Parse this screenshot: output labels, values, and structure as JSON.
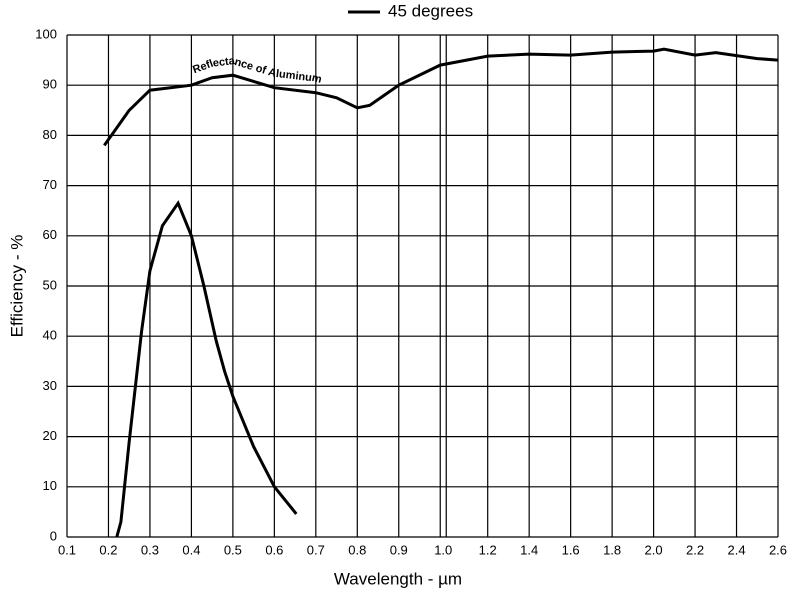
{
  "chart_data": {
    "type": "line",
    "x_label": "Wavelength - µm",
    "y_label": "Efficiency - %",
    "xlim": [
      0.1,
      2.6
    ],
    "x_break": 1,
    "xticks": [
      0.1,
      0.2,
      0.3,
      0.4,
      0.5,
      0.6,
      0.7,
      0.8,
      0.9,
      {
        "value": 1,
        "label": "1.0"
      },
      1.2,
      1.4,
      1.6,
      1.8,
      {
        "value": 2,
        "label": "2.0"
      },
      2.2,
      2.4,
      2.6
    ],
    "ylim": [
      0,
      100
    ],
    "yticks": [
      0,
      10,
      20,
      30,
      40,
      50,
      60,
      70,
      80,
      90,
      100
    ],
    "grid": true,
    "legend": "top",
    "series": [
      {
        "name": "45 degrees",
        "color": "#000000",
        "x": [
          0.22,
          0.23,
          0.25,
          0.28,
          0.3,
          0.33,
          0.368,
          0.4,
          0.43,
          0.46,
          0.48,
          0.5,
          0.55,
          0.6,
          0.653
        ],
        "values": [
          0,
          3,
          19,
          41,
          53,
          62,
          66.5,
          60,
          50,
          39,
          33,
          28,
          18,
          10,
          4.6
        ]
      }
    ],
    "reference_curve": {
      "label": "Reflectance of Aluminum",
      "color": "#000000",
      "x": [
        0.19,
        0.25,
        0.3,
        0.4,
        0.45,
        0.5,
        0.6,
        0.7,
        0.75,
        0.8,
        0.83,
        0.9,
        1,
        1.2,
        1.4,
        1.6,
        1.8,
        2,
        2.05,
        2.2,
        2.3,
        2.5,
        2.6
      ],
      "values": [
        78,
        85,
        89,
        90,
        91.5,
        92,
        89.5,
        88.5,
        87.5,
        85.5,
        86,
        90,
        94,
        95.8,
        96.2,
        96,
        96.6,
        96.8,
        97.2,
        96,
        96.5,
        95.3,
        95
      ]
    }
  }
}
